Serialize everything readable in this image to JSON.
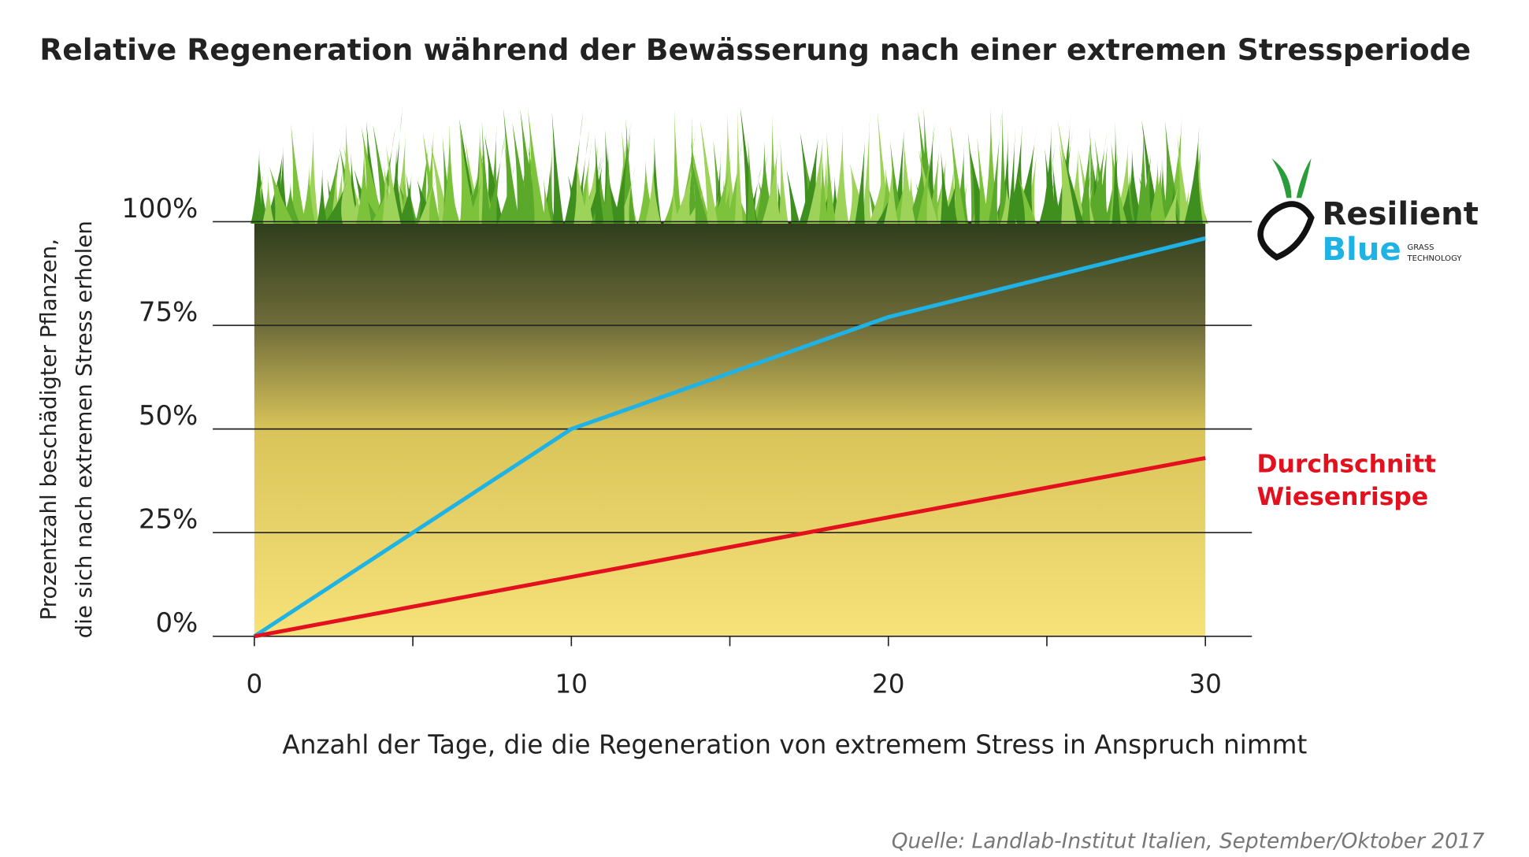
{
  "chart_data": {
    "type": "line",
    "title": "Relative Regeneration während der Bewässerung nach einer extremen Stressperiode",
    "xlabel": "Anzahl der Tage, die die Regeneration von extremem Stress in Anspruch nimmt",
    "ylabel": [
      "Prozentzahl beschädigter Pflanzen,",
      "die sich nach extremen Stress erholen"
    ],
    "x": [
      0,
      10,
      20,
      30
    ],
    "series": [
      {
        "color": "#1fb3e5",
        "values": [
          0,
          50,
          77,
          96
        ]
      },
      {
        "name": "Durchschnitt Wiesenrispe",
        "color": "#e3101e",
        "values": [
          0,
          14.3,
          28.7,
          43
        ]
      }
    ],
    "xlim": [
      0,
      30
    ],
    "xticks": [
      0,
      10,
      20,
      30
    ],
    "xticks_minor": [
      5,
      15,
      25
    ],
    "ylim": [
      0,
      100
    ],
    "yticks": [
      {
        "value": 0,
        "label": "0%"
      },
      {
        "value": 25,
        "label": "25%"
      },
      {
        "value": 50,
        "label": "50%"
      },
      {
        "value": 75,
        "label": "75%"
      },
      {
        "value": 100,
        "label": "100%"
      }
    ],
    "grid": true,
    "logo": {
      "line1": "Resilient",
      "line2": "Blue",
      "tag1": "GRASS",
      "tag2": "TECHNOLOGY"
    },
    "source": "Quelle: Landlab-Institut Italien, September/Oktober 2017"
  }
}
